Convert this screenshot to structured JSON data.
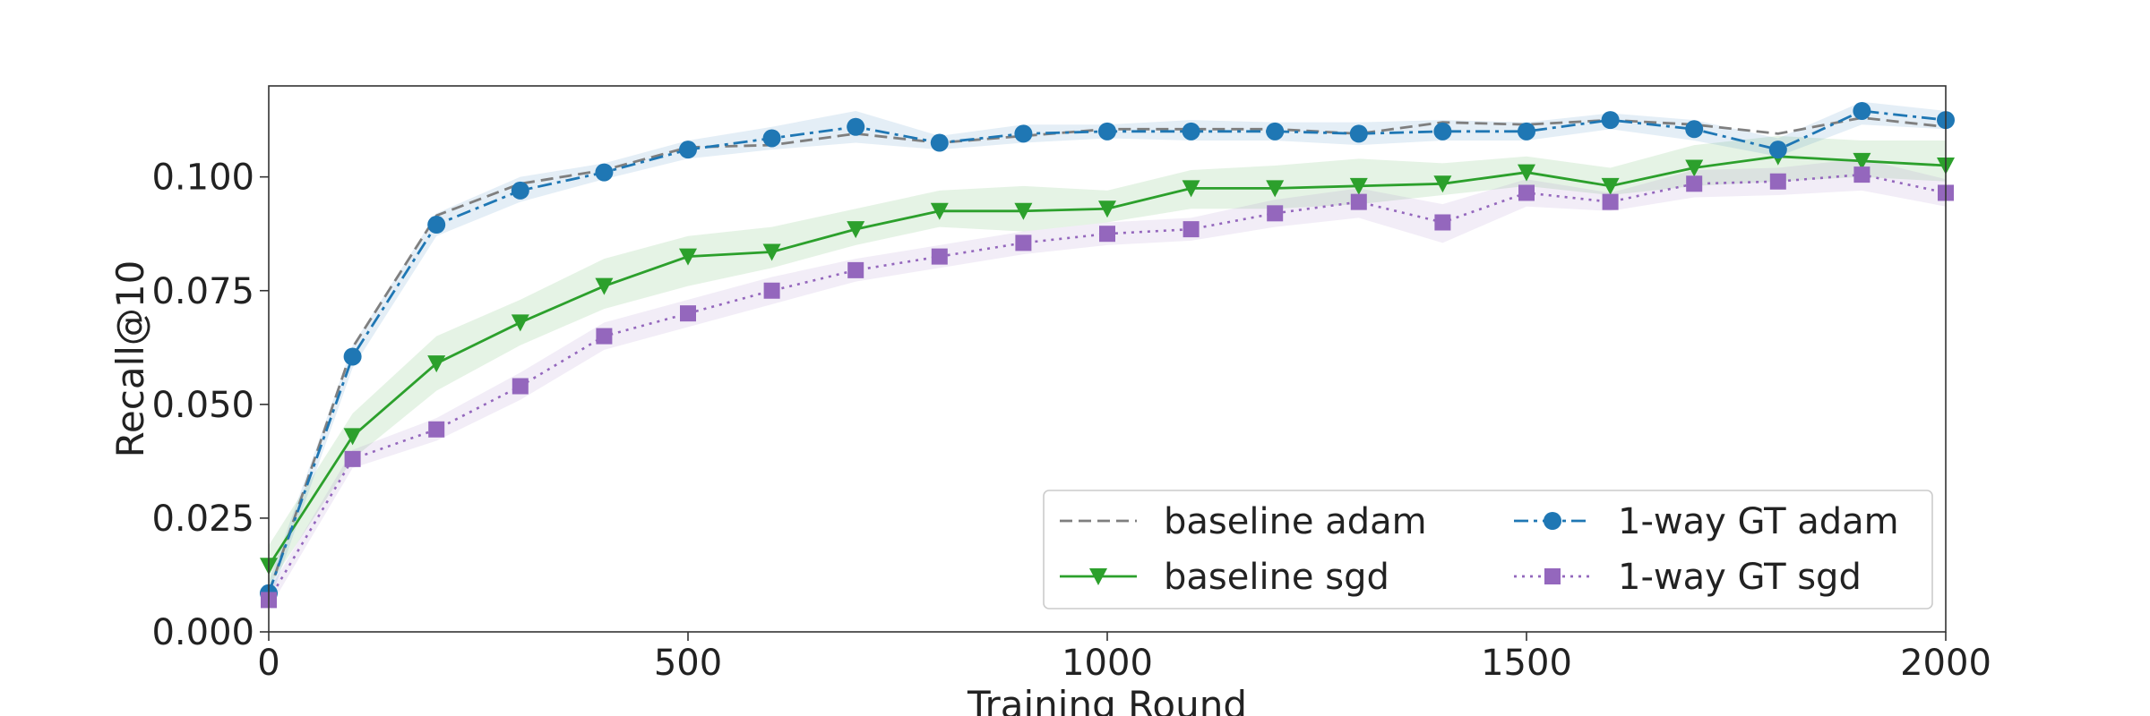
{
  "chart_data": {
    "type": "line",
    "title": "",
    "xlabel": "Training Round",
    "ylabel": "Recall@10",
    "xlim": [
      0,
      2000
    ],
    "ylim": [
      0,
      0.12
    ],
    "xticks": [
      0,
      500,
      1000,
      1500,
      2000
    ],
    "xtick_labels": [
      "0",
      "500",
      "1000",
      "1500",
      "2000"
    ],
    "yticks": [
      0,
      0.025,
      0.05,
      0.075,
      0.1
    ],
    "ytick_labels": [
      "0.000",
      "0.025",
      "0.050",
      "0.075",
      "0.100"
    ],
    "grid": false,
    "legend_position": "lower-right",
    "x": [
      0,
      100,
      200,
      300,
      400,
      500,
      600,
      700,
      800,
      900,
      1000,
      1100,
      1200,
      1300,
      1400,
      1500,
      1600,
      1700,
      1800,
      1900,
      2000
    ],
    "series": [
      {
        "name": "baseline adam",
        "color": "#7f7f7f",
        "line_style": "dashed",
        "marker": "none",
        "values": [
          0.0085,
          0.0625,
          0.0915,
          0.0985,
          0.1015,
          0.1065,
          0.107,
          0.1095,
          0.1075,
          0.109,
          0.1105,
          0.1105,
          0.1105,
          0.1095,
          0.112,
          0.1115,
          0.1125,
          0.1115,
          0.1095,
          0.113,
          0.111
        ],
        "band": null
      },
      {
        "name": "baseline sgd",
        "color": "#2ca02c",
        "line_style": "solid",
        "marker": "triangle-down",
        "values": [
          0.0145,
          0.043,
          0.059,
          0.068,
          0.076,
          0.0825,
          0.0835,
          0.0885,
          0.0925,
          0.0925,
          0.093,
          0.0975,
          0.0975,
          0.098,
          0.0985,
          0.101,
          0.098,
          0.102,
          0.1045,
          0.1035,
          0.1025
        ],
        "band_lower": [
          0.01,
          0.038,
          0.053,
          0.063,
          0.071,
          0.076,
          0.08,
          0.085,
          0.089,
          0.088,
          0.09,
          0.093,
          0.093,
          0.094,
          0.096,
          0.098,
          0.096,
          0.098,
          0.099,
          0.1,
          0.099
        ],
        "band_upper": [
          0.019,
          0.048,
          0.065,
          0.073,
          0.082,
          0.087,
          0.089,
          0.093,
          0.097,
          0.098,
          0.097,
          0.1015,
          0.1025,
          0.104,
          0.103,
          0.1045,
          0.102,
          0.107,
          0.109,
          0.108,
          0.108
        ]
      },
      {
        "name": "1-way GT adam",
        "color": "#1f77b4",
        "line_style": "dashdot",
        "marker": "circle",
        "values": [
          0.0085,
          0.0605,
          0.0895,
          0.097,
          0.101,
          0.106,
          0.1085,
          0.111,
          0.1075,
          0.1095,
          0.11,
          0.11,
          0.11,
          0.1095,
          0.11,
          0.11,
          0.1125,
          0.1105,
          0.106,
          0.1145,
          0.1125
        ],
        "band_lower": [
          0.006,
          0.058,
          0.087,
          0.0945,
          0.0995,
          0.104,
          0.106,
          0.1075,
          0.106,
          0.1075,
          0.1085,
          0.108,
          0.108,
          0.107,
          0.108,
          0.108,
          0.1105,
          0.108,
          0.1045,
          0.1115,
          0.1105
        ],
        "band_upper": [
          0.011,
          0.063,
          0.092,
          0.1,
          0.103,
          0.108,
          0.111,
          0.1145,
          0.109,
          0.1115,
          0.1115,
          0.1125,
          0.112,
          0.112,
          0.1125,
          0.112,
          0.114,
          0.1125,
          0.1085,
          0.1165,
          0.1145
        ]
      },
      {
        "name": "1-way GT sgd",
        "color": "#9467bd",
        "line_style": "dotted",
        "marker": "square",
        "values": [
          0.007,
          0.038,
          0.0445,
          0.054,
          0.065,
          0.07,
          0.075,
          0.0795,
          0.0825,
          0.0855,
          0.0875,
          0.0885,
          0.092,
          0.0945,
          0.09,
          0.0965,
          0.0945,
          0.0985,
          0.099,
          0.1005,
          0.0965
        ],
        "band_lower": [
          0.005,
          0.036,
          0.042,
          0.051,
          0.062,
          0.067,
          0.072,
          0.077,
          0.08,
          0.083,
          0.085,
          0.086,
          0.089,
          0.091,
          0.0855,
          0.0935,
          0.0925,
          0.0955,
          0.096,
          0.097,
          0.0935
        ],
        "band_upper": [
          0.009,
          0.04,
          0.047,
          0.057,
          0.068,
          0.073,
          0.078,
          0.082,
          0.085,
          0.088,
          0.09,
          0.091,
          0.095,
          0.0975,
          0.094,
          0.0995,
          0.0965,
          0.1015,
          0.102,
          0.104,
          0.0995
        ]
      }
    ],
    "legend": {
      "entries": [
        "baseline adam",
        "baseline sgd",
        "1-way GT adam",
        "1-way GT sgd"
      ]
    }
  }
}
